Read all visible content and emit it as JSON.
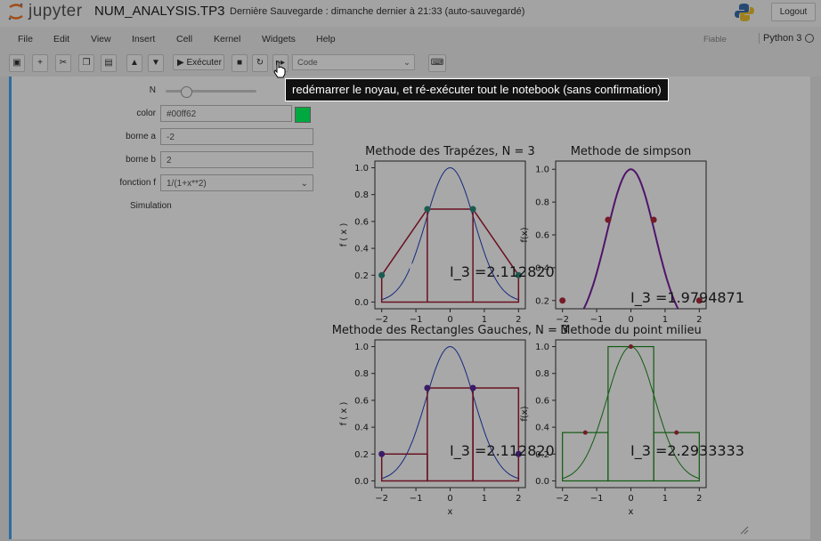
{
  "header": {
    "logo_text": "jupyter",
    "notebook_name": "NUM_ANALYSIS.TP3",
    "save_info": "Dernière Sauvegarde : dimanche dernier à 21:33   (auto-sauvegardé)",
    "logout": "Logout"
  },
  "menu": {
    "items": [
      "File",
      "Edit",
      "View",
      "Insert",
      "Cell",
      "Kernel",
      "Widgets",
      "Help"
    ],
    "trusted": "Fiable",
    "kernel": "Python 3"
  },
  "toolbar": {
    "run_label": "Exécuter",
    "cell_type": "Code"
  },
  "widgets": {
    "n_label": "N",
    "color_label": "color",
    "color_value": "#00ff62",
    "borne_a_label": "borne a",
    "borne_a_value": "-2",
    "borne_b_label": "borne b",
    "borne_b_value": "2",
    "fonction_label": "fonction f",
    "fonction_value": "1/(1+x**2)",
    "simulation_label": "Simulation"
  },
  "tooltip": "redémarrer le noyau, et ré-exécuter tout le notebook (sans confirmation)",
  "colors": {
    "curve": "#1f3fbf",
    "trap": "#a01b34",
    "simpson": "#7a1fa0",
    "rect": "#a01b34",
    "mid": "#1a8a1a"
  },
  "chart_data": [
    {
      "type": "line",
      "title": "Methode des Trapézes, N = 3",
      "xlabel": "",
      "ylabel": "f ( x )",
      "xlim": [
        -2.2,
        2.2
      ],
      "ylim": [
        -0.05,
        1.05
      ],
      "xticks": [
        "−2",
        "−1",
        "0",
        "1",
        "2"
      ],
      "yticks": [
        "0.0",
        "0.2",
        "0.4",
        "0.6",
        "0.8",
        "1.0"
      ],
      "nodes": [
        [
          -2,
          0.2
        ],
        [
          -0.667,
          0.692
        ],
        [
          0.667,
          0.692
        ],
        [
          2,
          0.2
        ]
      ],
      "annotation": "I_3 =2.1128205",
      "marker_label": "1"
    },
    {
      "type": "line",
      "title": "Methode de simpson",
      "xlabel": "",
      "ylabel": "f(x)",
      "xlim": [
        -2.2,
        2.2
      ],
      "ylim": [
        0.15,
        1.05
      ],
      "xticks": [
        "−2",
        "−1",
        "0",
        "1",
        "2"
      ],
      "yticks": [
        "0.2",
        "0.4",
        "0.6",
        "0.8",
        "1.0"
      ],
      "nodes": [
        [
          -2,
          0.2
        ],
        [
          -0.667,
          0.692
        ],
        [
          0.667,
          0.692
        ],
        [
          2,
          0.2
        ]
      ],
      "annotation": "I_3 =1.9794871"
    },
    {
      "type": "bar",
      "title": "Methode des Rectangles Gauches, N = 3",
      "xlabel": "x",
      "ylabel": "f ( x )",
      "xlim": [
        -2.2,
        2.2
      ],
      "ylim": [
        -0.05,
        1.05
      ],
      "xticks": [
        "−2",
        "−1",
        "0",
        "1",
        "2"
      ],
      "yticks": [
        "0.0",
        "0.2",
        "0.4",
        "0.6",
        "0.8",
        "1.0"
      ],
      "nodes": [
        [
          -2,
          0.2
        ],
        [
          -0.667,
          0.692
        ],
        [
          0.667,
          0.692
        ],
        [
          2,
          0.2
        ]
      ],
      "rects": [
        [
          -2,
          -0.667,
          0.2
        ],
        [
          -0.667,
          0.667,
          0.692
        ],
        [
          0.667,
          2,
          0.692
        ]
      ],
      "annotation": "I_3 =2.1128205"
    },
    {
      "type": "bar",
      "title": "Methode du point milieu",
      "xlabel": "x",
      "ylabel": "f(x)",
      "xlim": [
        -2.2,
        2.2
      ],
      "ylim": [
        -0.05,
        1.05
      ],
      "xticks": [
        "−2",
        "−1",
        "0",
        "1",
        "2"
      ],
      "yticks": [
        "0.0",
        "0.2",
        "0.4",
        "0.6",
        "0.8",
        "1.0"
      ],
      "nodes": [
        [
          -1.333,
          0.36
        ],
        [
          0,
          1.0
        ],
        [
          1.333,
          0.36
        ]
      ],
      "rects": [
        [
          -2,
          -0.667,
          0.36
        ],
        [
          -0.667,
          0.667,
          1.0
        ],
        [
          0.667,
          2,
          0.36
        ]
      ],
      "annotation": "I_3 =2.2933333"
    }
  ]
}
